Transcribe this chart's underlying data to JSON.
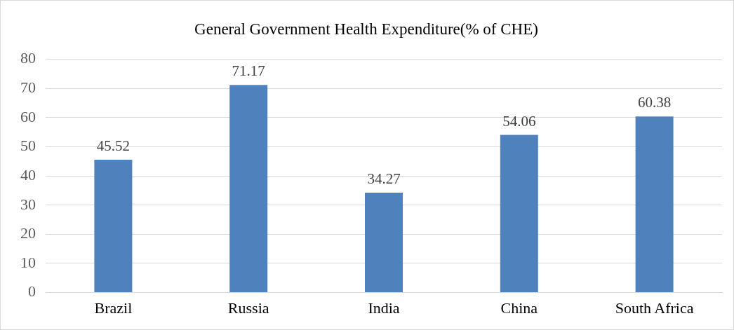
{
  "chart_data": {
    "type": "bar",
    "title": "General Government Health Expenditure(% of CHE)",
    "categories": [
      "Brazil",
      "Russia",
      "India",
      "China",
      "South Africa"
    ],
    "values": [
      45.52,
      71.17,
      34.27,
      54.06,
      60.38
    ],
    "color": "#4f81bd",
    "ylim": [
      0,
      80
    ],
    "yticks": [
      0,
      10,
      20,
      30,
      40,
      50,
      60,
      70,
      80
    ],
    "grid": "y",
    "data_labels": true
  }
}
